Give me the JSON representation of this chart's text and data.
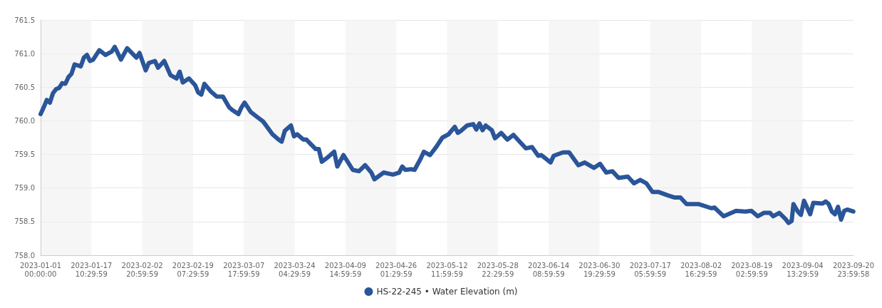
{
  "chart_data": {
    "type": "line",
    "x": [
      "2023-01-01",
      "2023-01-02",
      "2023-01-03",
      "2023-01-04",
      "2023-01-05",
      "2023-01-06",
      "2023-01-07",
      "2023-01-08",
      "2023-01-09",
      "2023-01-10",
      "2023-01-11",
      "2023-01-12",
      "2023-01-14",
      "2023-01-15",
      "2023-01-16",
      "2023-01-17",
      "2023-01-18",
      "2023-01-20",
      "2023-01-22",
      "2023-01-24",
      "2023-01-25",
      "2023-01-27",
      "2023-01-29",
      "2023-02-01",
      "2023-02-02",
      "2023-02-04",
      "2023-02-05",
      "2023-02-07",
      "2023-02-08",
      "2023-02-10",
      "2023-02-12",
      "2023-02-14",
      "2023-02-15",
      "2023-02-16",
      "2023-02-18",
      "2023-02-20",
      "2023-02-21",
      "2023-02-22",
      "2023-02-23",
      "2023-02-25",
      "2023-02-27",
      "2023-03-01",
      "2023-03-03",
      "2023-03-04",
      "2023-03-06",
      "2023-03-07",
      "2023-03-08",
      "2023-03-10",
      "2023-03-12",
      "2023-03-14",
      "2023-03-17",
      "2023-03-19",
      "2023-03-20",
      "2023-03-21",
      "2023-03-23",
      "2023-03-24",
      "2023-03-25",
      "2023-03-27",
      "2023-03-28",
      "2023-03-31",
      "2023-04-01",
      "2023-04-02",
      "2023-04-04",
      "2023-04-06",
      "2023-04-07",
      "2023-04-09",
      "2023-04-12",
      "2023-04-14",
      "2023-04-16",
      "2023-04-18",
      "2023-04-19",
      "2023-04-22",
      "2023-04-25",
      "2023-04-27",
      "2023-04-28",
      "2023-04-29",
      "2023-05-01",
      "2023-05-02",
      "2023-05-04",
      "2023-05-05",
      "2023-05-07",
      "2023-05-09",
      "2023-05-11",
      "2023-05-13",
      "2023-05-15",
      "2023-05-16",
      "2023-05-17",
      "2023-05-19",
      "2023-05-21",
      "2023-05-22",
      "2023-05-23",
      "2023-05-24",
      "2023-05-25",
      "2023-05-27",
      "2023-05-28",
      "2023-05-30",
      "2023-06-01",
      "2023-06-03",
      "2023-06-05",
      "2023-06-07",
      "2023-06-09",
      "2023-06-11",
      "2023-06-12",
      "2023-06-15",
      "2023-06-16",
      "2023-06-19",
      "2023-06-21",
      "2023-06-24",
      "2023-06-26",
      "2023-06-29",
      "2023-07-01",
      "2023-07-03",
      "2023-07-05",
      "2023-07-07",
      "2023-07-10",
      "2023-07-12",
      "2023-07-14",
      "2023-07-16",
      "2023-07-18",
      "2023-07-20",
      "2023-07-23",
      "2023-07-25",
      "2023-07-27",
      "2023-07-29",
      "2023-08-02",
      "2023-08-06",
      "2023-08-07",
      "2023-08-10",
      "2023-08-14",
      "2023-08-17",
      "2023-08-19",
      "2023-08-21",
      "2023-08-23",
      "2023-08-25",
      "2023-08-26",
      "2023-08-28",
      "2023-08-30",
      "2023-08-31",
      "2023-09-01",
      "2023-09-01T14:00",
      "2023-09-03",
      "2023-09-04",
      "2023-09-05",
      "2023-09-07",
      "2023-09-08",
      "2023-09-11",
      "2023-09-12",
      "2023-09-13",
      "2023-09-14",
      "2023-09-15",
      "2023-09-16",
      "2023-09-17",
      "2023-09-18",
      "2023-09-19",
      "2023-09-20T23:00"
    ],
    "series": [
      {
        "name": "HS-22-245 • Water Elevation (m)",
        "color": "#2a5599",
        "values": [
          760.1,
          760.2,
          760.31,
          760.27,
          760.41,
          760.47,
          760.49,
          760.56,
          760.55,
          760.65,
          760.7,
          760.84,
          760.81,
          760.94,
          760.98,
          760.89,
          760.91,
          761.05,
          760.98,
          761.03,
          761.1,
          760.91,
          761.08,
          760.94,
          761.01,
          760.75,
          760.86,
          760.89,
          760.79,
          760.89,
          760.68,
          760.63,
          760.73,
          760.57,
          760.63,
          760.53,
          760.42,
          760.39,
          760.55,
          760.44,
          760.36,
          760.36,
          760.2,
          760.16,
          760.1,
          760.2,
          760.27,
          760.13,
          760.06,
          759.99,
          759.8,
          759.72,
          759.69,
          759.85,
          759.93,
          759.77,
          759.8,
          759.72,
          759.72,
          759.58,
          759.58,
          759.39,
          759.46,
          759.54,
          759.32,
          759.49,
          759.27,
          759.25,
          759.34,
          759.23,
          759.13,
          759.23,
          759.2,
          759.23,
          759.32,
          759.27,
          759.28,
          759.27,
          759.44,
          759.54,
          759.49,
          759.61,
          759.75,
          759.8,
          759.91,
          759.82,
          759.85,
          759.93,
          759.95,
          759.87,
          759.96,
          759.86,
          759.93,
          759.86,
          759.74,
          759.82,
          759.72,
          759.79,
          759.69,
          759.59,
          759.61,
          759.48,
          759.49,
          759.38,
          759.48,
          759.53,
          759.53,
          759.34,
          759.38,
          759.3,
          759.36,
          759.23,
          759.25,
          759.15,
          759.17,
          759.07,
          759.12,
          759.07,
          758.94,
          758.94,
          758.89,
          758.86,
          758.86,
          758.76,
          758.76,
          758.7,
          758.71,
          758.58,
          758.66,
          758.65,
          758.66,
          758.58,
          758.63,
          758.63,
          758.58,
          758.63,
          758.54,
          758.48,
          758.51,
          758.76,
          758.65,
          758.6,
          758.81,
          758.61,
          758.78,
          758.77,
          758.8,
          758.76,
          758.65,
          758.61,
          758.72,
          758.53,
          758.66,
          758.68,
          758.65
        ]
      }
    ],
    "xlim": [
      "2023-01-01",
      "2023-09-20T23:59"
    ],
    "xticks": [
      {
        "value": "2023-01-01",
        "label": "2023-01-01 00:00:00"
      },
      {
        "value": "2023-01-17T10:29",
        "label": "2023-01-17 10:29:59"
      },
      {
        "value": "2023-02-02T20:59",
        "label": "2023-02-02 20:59:59"
      },
      {
        "value": "2023-02-19T07:29",
        "label": "2023-02-19 07:29:59"
      },
      {
        "value": "2023-03-07T17:59",
        "label": "2023-03-07 17:59:59"
      },
      {
        "value": "2023-03-24T04:29",
        "label": "2023-03-24 04:29:59"
      },
      {
        "value": "2023-04-09T14:59",
        "label": "2023-04-09 14:59:59"
      },
      {
        "value": "2023-04-26T01:29",
        "label": "2023-04-26 01:29:59"
      },
      {
        "value": "2023-05-12T11:59",
        "label": "2023-05-12 11:59:59"
      },
      {
        "value": "2023-05-28T22:29",
        "label": "2023-05-28 22:29:59"
      },
      {
        "value": "2023-06-14T08:59",
        "label": "2023-06-14 08:59:59"
      },
      {
        "value": "2023-06-30T19:29",
        "label": "2023-06-30 19:29:59"
      },
      {
        "value": "2023-07-17T05:59",
        "label": "2023-07-17 05:59:59"
      },
      {
        "value": "2023-08-02T16:29",
        "label": "2023-08-02 16:29:59"
      },
      {
        "value": "2023-08-19T02:59",
        "label": "2023-08-19 02:59:59"
      },
      {
        "value": "2023-09-04T13:29",
        "label": "2023-09-04 13:29:59"
      },
      {
        "value": "2023-09-20T23:59",
        "label": "2023-09-20 23:59:58"
      }
    ],
    "ylim": [
      758.0,
      761.5
    ],
    "yticks": [
      {
        "value": 758,
        "label": "758.0"
      },
      758.5,
      {
        "value": 759,
        "label": "759.0"
      },
      759.5,
      {
        "value": 760,
        "label": "760.0"
      },
      760.5,
      {
        "value": 761,
        "label": "761.0"
      },
      761.5
    ],
    "grid": true,
    "legend": "bottom",
    "marker": "none",
    "line_style": "solid"
  }
}
